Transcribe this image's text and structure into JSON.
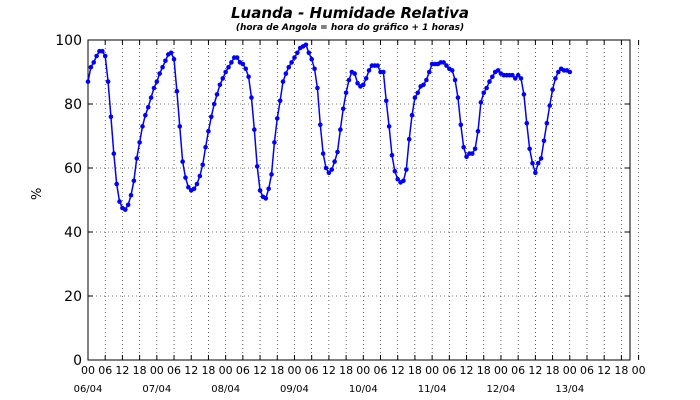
{
  "chart_data": {
    "type": "line",
    "title": "Luanda - Humidade Relativa",
    "subtitle": "(hora de Angola = hora do gráfico + 1 horas)",
    "xlabel": "",
    "ylabel": "%",
    "ylim": [
      0,
      100
    ],
    "yticks": [
      "0",
      "20",
      "40",
      "60",
      "80",
      "100"
    ],
    "x_hour_ticks": [
      "00",
      "06",
      "12",
      "18",
      "00",
      "06",
      "12",
      "18",
      "00",
      "06",
      "12",
      "18",
      "00",
      "06",
      "12",
      "18",
      "00",
      "06",
      "12",
      "18",
      "00",
      "06",
      "12",
      "18",
      "00",
      "06",
      "12",
      "18",
      "00",
      "06",
      "12",
      "18",
      "00"
    ],
    "x_date_labels": [
      "06/04",
      "07/04",
      "08/04",
      "09/04",
      "10/04",
      "11/04",
      "12/04",
      "13/04"
    ],
    "x_range_hours": [
      0,
      189
    ],
    "grid": true,
    "line_color": "#0000ff",
    "series": [
      {
        "values": [
          [
            0,
            87
          ],
          [
            1,
            91.5
          ],
          [
            2,
            93
          ],
          [
            3,
            95
          ],
          [
            4,
            96.5
          ],
          [
            5,
            96.5
          ],
          [
            6,
            95
          ],
          [
            7,
            87
          ],
          [
            8,
            76
          ],
          [
            9,
            64.5
          ],
          [
            10,
            55
          ],
          [
            11,
            49.5
          ],
          [
            12,
            47.5
          ],
          [
            13,
            47
          ],
          [
            14,
            48.5
          ],
          [
            15,
            51.5
          ],
          [
            16,
            56
          ],
          [
            17,
            63
          ],
          [
            18,
            68
          ],
          [
            19,
            73
          ],
          [
            20,
            76.5
          ],
          [
            21,
            79
          ],
          [
            22,
            82
          ],
          [
            23,
            85
          ],
          [
            24,
            87
          ],
          [
            25,
            89.5
          ],
          [
            26,
            91.5
          ],
          [
            27,
            93.5
          ],
          [
            28,
            95.5
          ],
          [
            29,
            96
          ],
          [
            30,
            94
          ],
          [
            31,
            84
          ],
          [
            32,
            73
          ],
          [
            33,
            62
          ],
          [
            34,
            57
          ],
          [
            35,
            54
          ],
          [
            36,
            53
          ],
          [
            37,
            53.5
          ],
          [
            38,
            55
          ],
          [
            39,
            57.5
          ],
          [
            40,
            61
          ],
          [
            41,
            66.5
          ],
          [
            42,
            71.5
          ],
          [
            43,
            76
          ],
          [
            44,
            80
          ],
          [
            45,
            83
          ],
          [
            46,
            86
          ],
          [
            47,
            88
          ],
          [
            48,
            90
          ],
          [
            49,
            91.5
          ],
          [
            50,
            93
          ],
          [
            51,
            94.5
          ],
          [
            52,
            94.5
          ],
          [
            53,
            93
          ],
          [
            54,
            92.5
          ],
          [
            55,
            91
          ],
          [
            56,
            88.5
          ],
          [
            57,
            82
          ],
          [
            58,
            72
          ],
          [
            59,
            60.5
          ],
          [
            60,
            53
          ],
          [
            61,
            51
          ],
          [
            62,
            50.5
          ],
          [
            63,
            53.5
          ],
          [
            64,
            58
          ],
          [
            65,
            68
          ],
          [
            66,
            75.5
          ],
          [
            67,
            81
          ],
          [
            68,
            87
          ],
          [
            69,
            89.5
          ],
          [
            70,
            91.5
          ],
          [
            71,
            93
          ],
          [
            72,
            94.5
          ],
          [
            73,
            96
          ],
          [
            74,
            97.5
          ],
          [
            75,
            98
          ],
          [
            76,
            98.5
          ],
          [
            77,
            96
          ],
          [
            78,
            94
          ],
          [
            79,
            91
          ],
          [
            80,
            85
          ],
          [
            81,
            73.5
          ],
          [
            82,
            64.5
          ],
          [
            83,
            60
          ],
          [
            84,
            58.5
          ],
          [
            85,
            59.5
          ],
          [
            86,
            62
          ],
          [
            87,
            65
          ],
          [
            88,
            72
          ],
          [
            89,
            78.5
          ],
          [
            90,
            83.5
          ],
          [
            91,
            87.5
          ],
          [
            92,
            90
          ],
          [
            93,
            89.5
          ],
          [
            94,
            86.5
          ],
          [
            95,
            85.5
          ],
          [
            96,
            86
          ],
          [
            97,
            88
          ],
          [
            98,
            90.5
          ],
          [
            99,
            92
          ],
          [
            100,
            92
          ],
          [
            101,
            92
          ],
          [
            102,
            90
          ],
          [
            103,
            90
          ],
          [
            104,
            81
          ],
          [
            105,
            73
          ],
          [
            106,
            64
          ],
          [
            107,
            59
          ],
          [
            108,
            56.5
          ],
          [
            109,
            55.5
          ],
          [
            110,
            56
          ],
          [
            111,
            59.5
          ],
          [
            112,
            69
          ],
          [
            113,
            76.5
          ],
          [
            114,
            82
          ],
          [
            115,
            83.5
          ],
          [
            116,
            85.5
          ],
          [
            117,
            86
          ],
          [
            118,
            87.5
          ],
          [
            119,
            90
          ],
          [
            120,
            92.5
          ],
          [
            121,
            92.5
          ],
          [
            122,
            92.5
          ],
          [
            123,
            93
          ],
          [
            124,
            93
          ],
          [
            125,
            92
          ],
          [
            126,
            91
          ],
          [
            127,
            90.5
          ],
          [
            128,
            87.5
          ],
          [
            129,
            82
          ],
          [
            130,
            73.5
          ],
          [
            131,
            66.5
          ],
          [
            132,
            63.5
          ],
          [
            133,
            64.5
          ],
          [
            134,
            64.5
          ],
          [
            135,
            66
          ],
          [
            136,
            71.5
          ],
          [
            137,
            80.5
          ],
          [
            138,
            83.5
          ],
          [
            139,
            85
          ],
          [
            140,
            87
          ],
          [
            141,
            88.5
          ],
          [
            142,
            90
          ],
          [
            143,
            90.5
          ],
          [
            144,
            89.5
          ],
          [
            145,
            89
          ],
          [
            146,
            89
          ],
          [
            147,
            89
          ],
          [
            148,
            89
          ],
          [
            149,
            88
          ],
          [
            150,
            89
          ],
          [
            151,
            88
          ],
          [
            152,
            83
          ],
          [
            153,
            74
          ],
          [
            154,
            66
          ],
          [
            155,
            61.5
          ],
          [
            156,
            58.5
          ],
          [
            157,
            61.5
          ],
          [
            158,
            63
          ],
          [
            159,
            68.5
          ],
          [
            160,
            74
          ],
          [
            161,
            79.5
          ],
          [
            162,
            84.5
          ],
          [
            163,
            88
          ],
          [
            164,
            90
          ],
          [
            165,
            91
          ],
          [
            166,
            90.5
          ],
          [
            167,
            90.5
          ],
          [
            168,
            90
          ]
        ]
      }
    ]
  }
}
